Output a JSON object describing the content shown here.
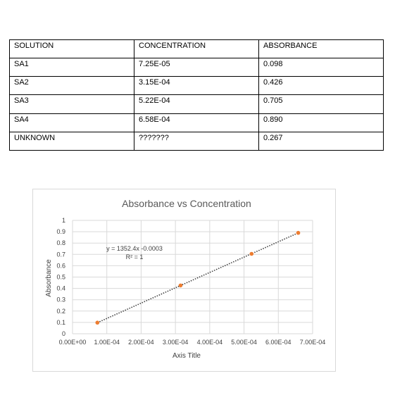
{
  "table": {
    "headers": [
      "SOLUTION",
      "CONCENTRATION",
      "ABSORBANCE"
    ],
    "rows": [
      [
        "SA1",
        "7.25E-05",
        "0.098"
      ],
      [
        "SA2",
        "3.15E-04",
        "0.426"
      ],
      [
        "SA3",
        "5.22E-04",
        "0.705"
      ],
      [
        "SA4",
        "6.58E-04",
        "0.890"
      ],
      [
        "UNKNOWN",
        "???????",
        "0.267"
      ]
    ]
  },
  "chart_data": {
    "type": "scatter",
    "title": "Absorbance vs Concentration",
    "xlabel": "Axis Title",
    "ylabel": "Absorbance",
    "xlim": [
      0,
      0.0007
    ],
    "ylim": [
      0,
      1
    ],
    "x_ticks": [
      "0.00E+00",
      "1.00E-04",
      "2.00E-04",
      "3.00E-04",
      "4.00E-04",
      "5.00E-04",
      "6.00E-04",
      "7.00E-04"
    ],
    "y_ticks": [
      "0",
      "0.1",
      "0.2",
      "0.3",
      "0.4",
      "0.5",
      "0.6",
      "0.7",
      "0.8",
      "0.9",
      "1"
    ],
    "grid": true,
    "series": [
      {
        "x": [
          7.25e-05,
          0.000315,
          0.000522,
          0.000658
        ],
        "y": [
          0.098,
          0.426,
          0.705,
          0.89
        ],
        "marker_color": "#ed7d31"
      }
    ],
    "trendline": {
      "slope": 1352.4,
      "intercept": -0.0003,
      "equation": "y = 1352.4x -0.0003",
      "r_squared": "R² = 1",
      "color": "#404040",
      "style": "dotted"
    }
  }
}
